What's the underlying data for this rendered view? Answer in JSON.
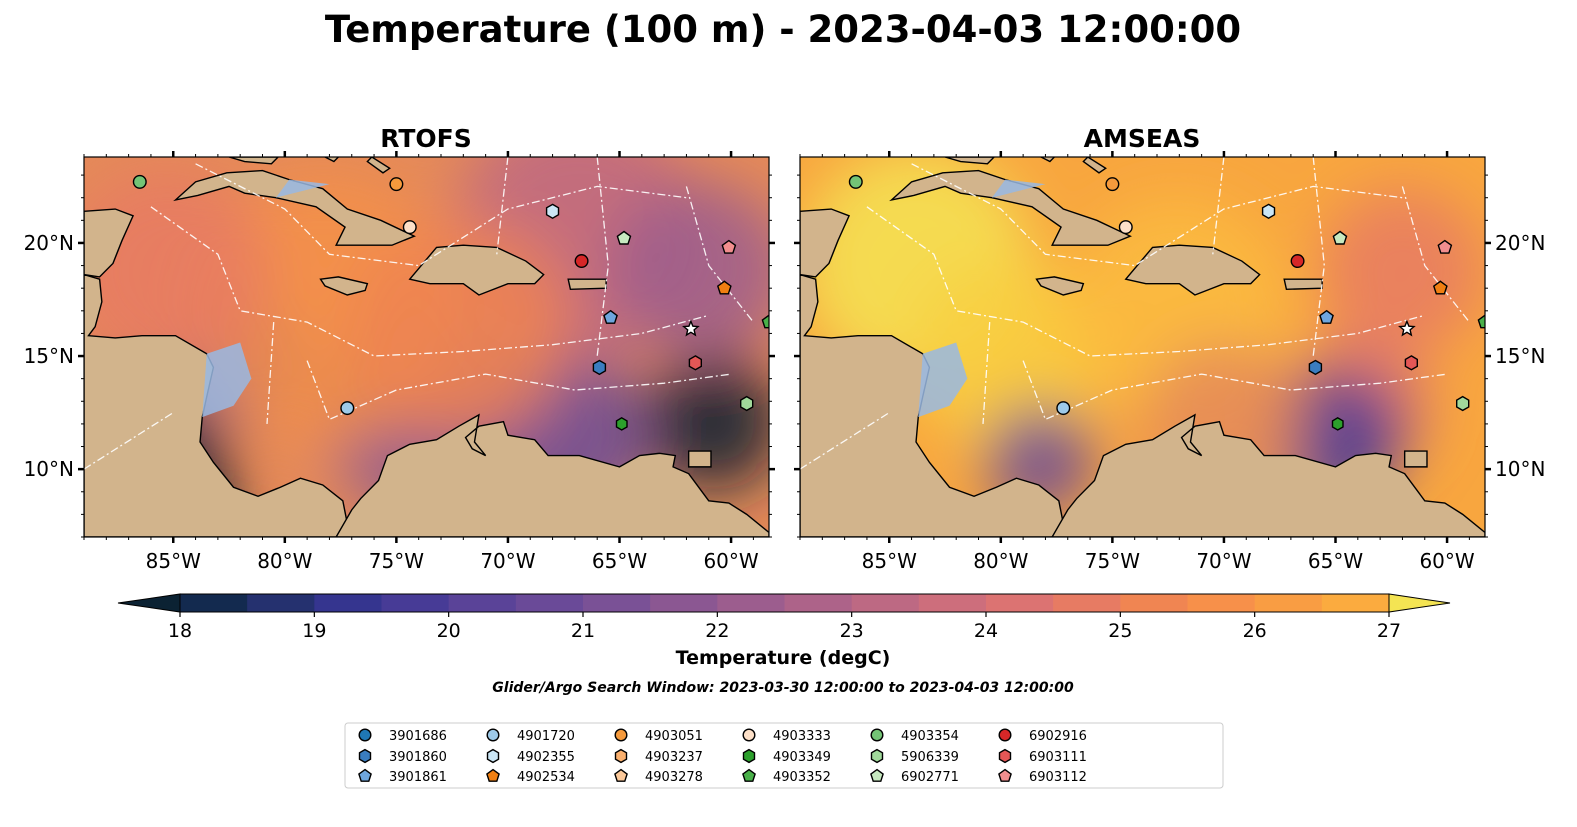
{
  "figure": {
    "title": "Temperature (100 m) - 2023-04-03 12:00:00",
    "search_window": "Glider/Argo Search Window: 2023-03-30 12:00:00 to 2023-04-03 12:00:00"
  },
  "panels": [
    {
      "title": "RTOFS",
      "scheme": "rtofs"
    },
    {
      "title": "AMSEAS",
      "scheme": "amseas"
    }
  ],
  "map_extent": {
    "lon_min": -89.0,
    "lon_max": -58.3,
    "lat_min": 7.0,
    "lat_max": 23.8
  },
  "axes": {
    "lon_ticks": [
      {
        "value": -85,
        "label": "85°W"
      },
      {
        "value": -80,
        "label": "80°W"
      },
      {
        "value": -75,
        "label": "75°W"
      },
      {
        "value": -70,
        "label": "70°W"
      },
      {
        "value": -65,
        "label": "65°W"
      },
      {
        "value": -60,
        "label": "60°W"
      }
    ],
    "lat_ticks": [
      {
        "value": 20,
        "label": "20°N"
      },
      {
        "value": 15,
        "label": "15°N"
      },
      {
        "value": 10,
        "label": "10°N"
      }
    ]
  },
  "colorbar": {
    "label": "Temperature (degC)",
    "min": 18,
    "max": 27,
    "step": 0.5,
    "ticks": [
      18,
      19,
      20,
      21,
      22,
      23,
      24,
      25,
      26,
      27
    ],
    "colors": [
      "#0b2233",
      "#132a4f",
      "#25316f",
      "#35358f",
      "#473b96",
      "#5a4398",
      "#6a4a98",
      "#7a5196",
      "#8b5792",
      "#9c5d8e",
      "#ad6389",
      "#bd6983",
      "#cd6e7c",
      "#dc7372",
      "#e77b63",
      "#f08552",
      "#f7904a",
      "#f99d43",
      "#fbab3f",
      "#fcbc3e",
      "#f9cf41",
      "#f4e453"
    ]
  },
  "colors": {
    "land": "#d2b48c",
    "ocean": "#99b9e3",
    "coast": "#000000"
  },
  "chart_data": {
    "type": "scatter",
    "series": [
      {
        "name": "3901686",
        "marker": "circle",
        "color": "#1f77b4",
        "points": []
      },
      {
        "name": "3901860",
        "marker": "hexagon",
        "color": "#3a7dc0",
        "points": [
          {
            "x": -65.9,
            "y": 14.5
          }
        ]
      },
      {
        "name": "3901861",
        "marker": "pentagon",
        "color": "#6ea6de",
        "points": [
          {
            "x": -65.4,
            "y": 16.7
          }
        ]
      },
      {
        "name": "4901720",
        "marker": "circle",
        "color": "#9ecae9",
        "points": [
          {
            "x": -77.2,
            "y": 12.7
          }
        ]
      },
      {
        "name": "4902355",
        "marker": "hexagon",
        "color": "#cbe6f5",
        "points": [
          {
            "x": -68.0,
            "y": 21.4
          }
        ]
      },
      {
        "name": "4902534",
        "marker": "pentagon",
        "color": "#f07f12",
        "points": [
          {
            "x": -60.3,
            "y": 18.0
          }
        ]
      },
      {
        "name": "4903051",
        "marker": "circle",
        "color": "#f59a3c",
        "points": [
          {
            "x": -75.0,
            "y": 22.6
          }
        ]
      },
      {
        "name": "4903237",
        "marker": "hexagon",
        "color": "#fab06e",
        "points": []
      },
      {
        "name": "4903278",
        "marker": "pentagon",
        "color": "#fcc99a",
        "points": []
      },
      {
        "name": "4903333",
        "marker": "circle",
        "color": "#fde0c8",
        "points": [
          {
            "x": -74.4,
            "y": 20.7
          }
        ]
      },
      {
        "name": "4903349",
        "marker": "hexagon",
        "color": "#2ca02c",
        "points": []
      },
      {
        "name": "4903352",
        "marker": "pentagon",
        "color": "#49b049",
        "points": [
          {
            "x": -58.3,
            "y": 16.5
          }
        ]
      },
      {
        "name": "4903354",
        "marker": "circle",
        "color": "#74c476",
        "points": [
          {
            "x": -86.5,
            "y": 22.7
          }
        ]
      },
      {
        "name": "5906339",
        "marker": "hexagon",
        "color": "#a1d99b",
        "points": [
          {
            "x": -59.3,
            "y": 12.9
          }
        ]
      },
      {
        "name": "6902771",
        "marker": "pentagon",
        "color": "#c7e9c0",
        "points": [
          {
            "x": -64.8,
            "y": 20.2
          }
        ]
      },
      {
        "name": "6902916",
        "marker": "circle",
        "color": "#d62728",
        "points": [
          {
            "x": -66.7,
            "y": 19.2
          }
        ]
      },
      {
        "name": "6903111",
        "marker": "hexagon",
        "color": "#e45756",
        "points": [
          {
            "x": -61.6,
            "y": 14.7
          }
        ]
      },
      {
        "name": "6903112",
        "marker": "pentagon",
        "color": "#f28e8e",
        "points": [
          {
            "x": -60.1,
            "y": 19.8
          }
        ]
      }
    ],
    "extra_points": [
      {
        "marker": "star",
        "color": "#ffffff",
        "x": -61.8,
        "y": 16.2
      },
      {
        "marker": "hexagon",
        "color": "#2ca02c",
        "x": -64.9,
        "y": 12.0
      }
    ]
  }
}
